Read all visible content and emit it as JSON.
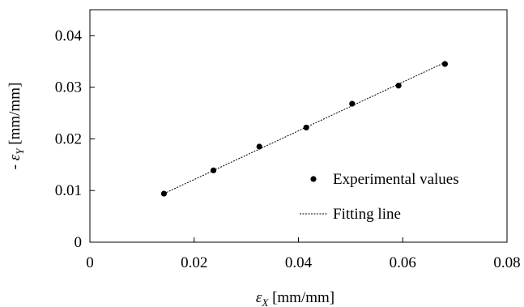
{
  "chart_data": {
    "type": "scatter",
    "xlim": [
      0,
      0.08
    ],
    "ylim": [
      0,
      0.045
    ],
    "x_ticks": [
      "0",
      "0.02",
      "0.04",
      "0.06",
      "0.08"
    ],
    "x_tick_values": [
      0,
      0.02,
      0.04,
      0.06,
      0.08
    ],
    "y_ticks": [
      "0",
      "0.01",
      "0.02",
      "0.03",
      "0.04"
    ],
    "y_tick_values": [
      0,
      0.01,
      0.02,
      0.03,
      0.04
    ],
    "xlabel": {
      "symbol": "ε",
      "sub": "X",
      "unit": " [mm/mm]"
    },
    "ylabel": {
      "prefix": "- ",
      "symbol": "ε",
      "sub": "Y",
      "unit": " [mm/mm]"
    },
    "grid": false,
    "legend_position": "center-right",
    "series": [
      {
        "name": "Experimental values",
        "kind": "points",
        "x": [
          0.0142,
          0.0237,
          0.0325,
          0.0415,
          0.0503,
          0.0592,
          0.0681
        ],
        "y": [
          0.0094,
          0.0139,
          0.0185,
          0.0222,
          0.0268,
          0.0303,
          0.0345
        ]
      },
      {
        "name": "Fitting line",
        "kind": "line",
        "x": [
          0.0142,
          0.0681
        ],
        "y": [
          0.0094,
          0.0348
        ]
      }
    ]
  }
}
